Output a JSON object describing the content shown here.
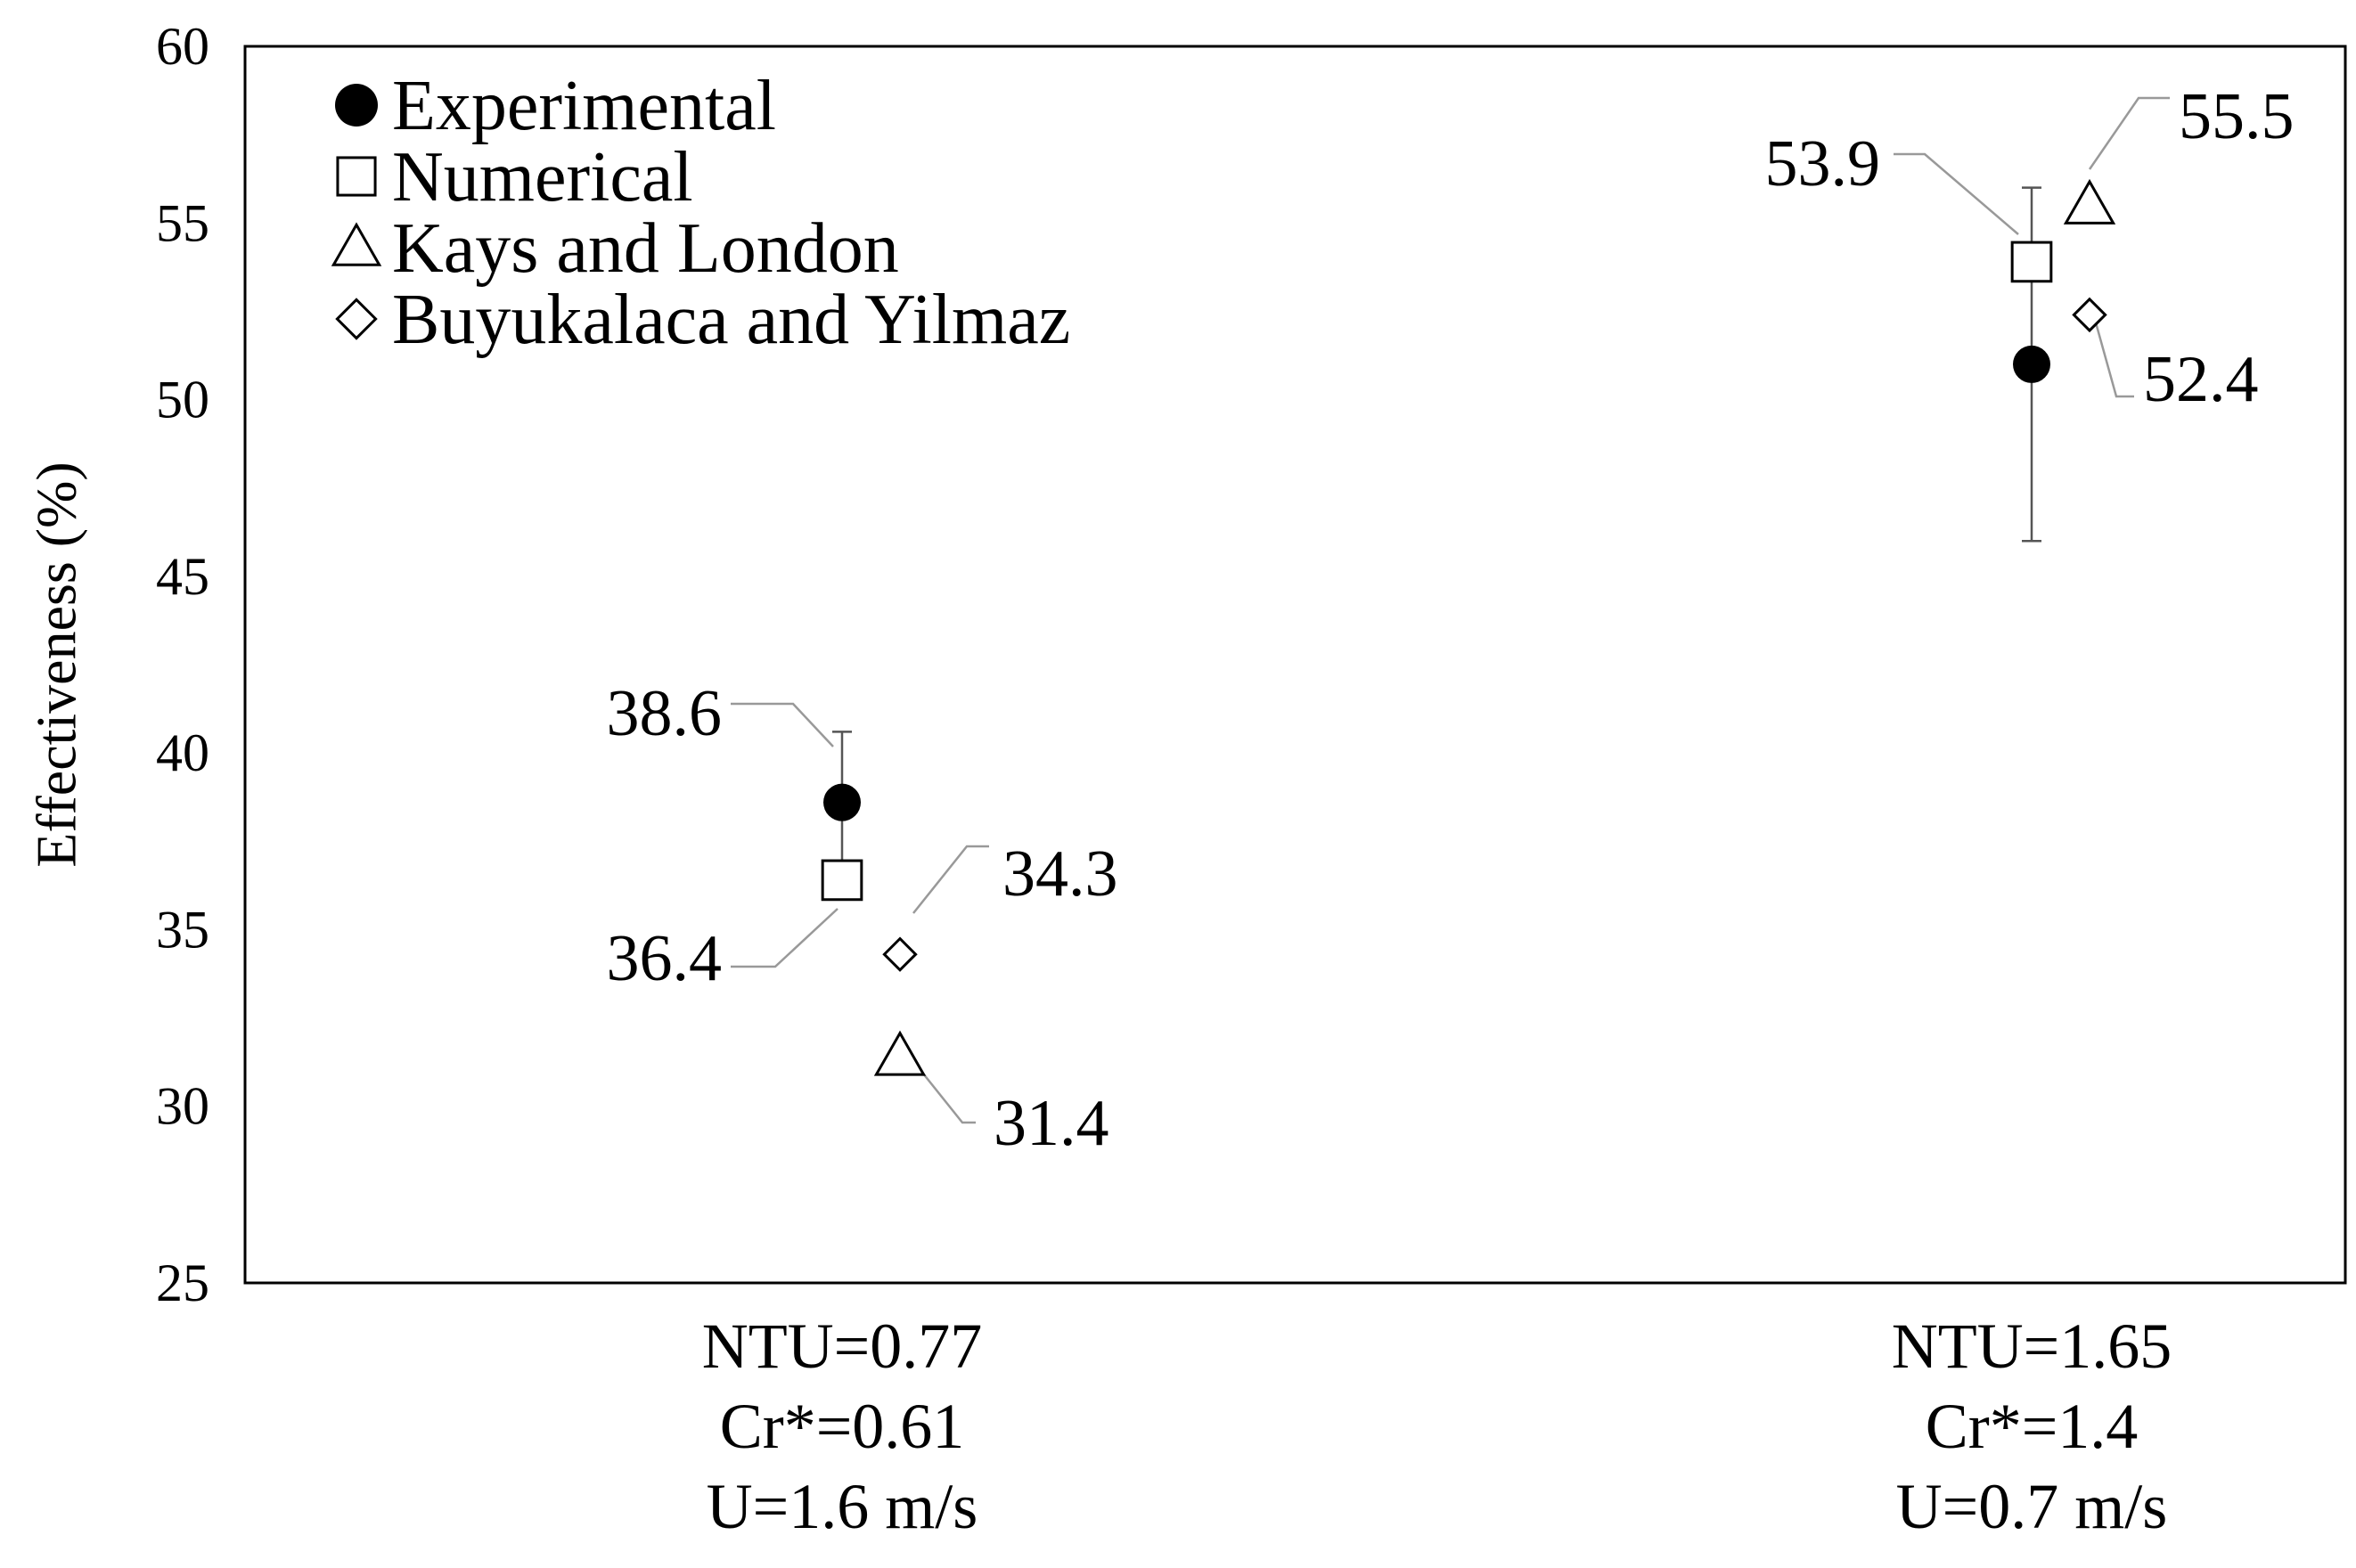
{
  "chart_data": {
    "type": "scatter",
    "title": "",
    "xlabel": "",
    "ylabel": "Effectiveness (%)",
    "ylim": [
      25,
      60
    ],
    "yticks": [
      25,
      30,
      35,
      40,
      45,
      50,
      55,
      60
    ],
    "grid": false,
    "legend_position": "top-left",
    "categories": [
      {
        "lines": [
          "NTU=0.77",
          "Cr*=0.61",
          "U=1.6 m/s"
        ]
      },
      {
        "lines": [
          "NTU=1.65",
          "Cr*=1.4",
          "U=0.7 m/s"
        ]
      }
    ],
    "series": [
      {
        "name": "Experimental",
        "marker": "filled-circle",
        "points": [
          {
            "category": 0,
            "y": 38.6,
            "label": "38.6",
            "error_low": 36.6,
            "error_high": 40.6
          },
          {
            "category": 1,
            "y": 51.0,
            "label": "",
            "error_low": 46.0,
            "error_high": 56.0
          }
        ]
      },
      {
        "name": "Numerical",
        "marker": "open-square",
        "points": [
          {
            "category": 0,
            "y": 36.4,
            "label": "36.4"
          },
          {
            "category": 1,
            "y": 53.9,
            "label": "53.9"
          }
        ]
      },
      {
        "name": "Kays and London",
        "marker": "open-triangle",
        "points": [
          {
            "category": 0,
            "y": 31.4,
            "label": "31.4"
          },
          {
            "category": 1,
            "y": 55.5,
            "label": "55.5"
          }
        ]
      },
      {
        "name": "Buyukalaca and Yilmaz",
        "marker": "open-diamond",
        "points": [
          {
            "category": 0,
            "y": 34.3,
            "label": "34.3"
          },
          {
            "category": 1,
            "y": 52.4,
            "label": "52.4"
          }
        ]
      }
    ]
  }
}
